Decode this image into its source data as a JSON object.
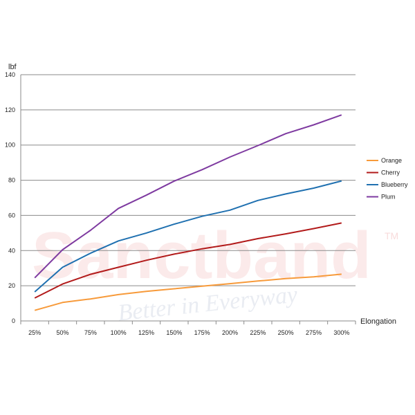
{
  "watermark": {
    "brand": "Sanctband",
    "tagline": "Better in Everyway",
    "tm": "TM"
  },
  "chart_data": {
    "type": "line",
    "title": "",
    "xlabel": "Elongation",
    "ylabel": "lbf",
    "categories": [
      "25%",
      "50%",
      "75%",
      "100%",
      "125%",
      "150%",
      "175%",
      "200%",
      "225%",
      "250%",
      "275%",
      "300%"
    ],
    "ylim": [
      0,
      140
    ],
    "yticks": [
      0,
      20,
      40,
      60,
      80,
      100,
      120,
      140
    ],
    "grid": "horizontal",
    "legend_position": "right",
    "series": [
      {
        "name": "Orange",
        "color": "#f79a3a",
        "values": [
          6,
          10.5,
          12.5,
          15,
          16.8,
          18.3,
          19.8,
          21.2,
          22.7,
          24.1,
          25.1,
          26.6
        ]
      },
      {
        "name": "Cherry",
        "color": "#b21a1a",
        "values": [
          13,
          21,
          26.5,
          30.5,
          34.5,
          38,
          41,
          43.5,
          46.8,
          49.5,
          52.5,
          55.7
        ]
      },
      {
        "name": "Blueberry",
        "color": "#1f70b0",
        "values": [
          16.5,
          30.5,
          38.5,
          45.5,
          50,
          55,
          59.5,
          63,
          68.5,
          72.2,
          75.5,
          79.6
        ]
      },
      {
        "name": "Plum",
        "color": "#7e3aa0",
        "values": [
          24.5,
          40.5,
          51.5,
          64,
          71.5,
          79.5,
          86,
          93.2,
          99.7,
          106.5,
          111.5,
          117.1
        ]
      }
    ]
  }
}
